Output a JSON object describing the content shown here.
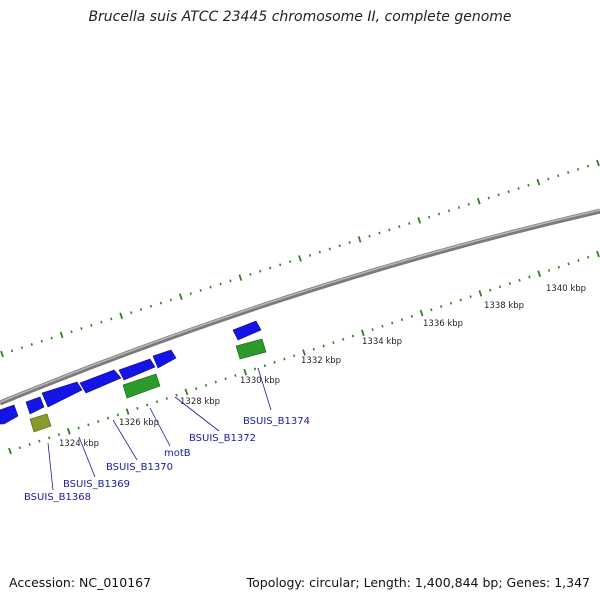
{
  "title": "Brucella suis ATCC 23445 chromosome II, complete genome",
  "footer": {
    "accession": "Accession: NC_010167",
    "summary": "Topology: circular; Length: 1,400,844 bp; Genes: 1,347"
  },
  "colors": {
    "forward_gene": "#1414e6",
    "reverse_gene": "#2a9a2a",
    "pseudo_gene": "#8a9a2a",
    "backbone": "#8a8a8a",
    "ticks": "#2f7f1f",
    "label_line": "#1a1aa6"
  },
  "kbp_ticks": [
    "1324 kbp",
    "1326 kbp",
    "1328 kbp",
    "1330 kbp",
    "1332 kbp",
    "1334 kbp",
    "1336 kbp",
    "1338 kbp",
    "1340 kbp"
  ],
  "gene_labels": [
    "BSUIS_B1368",
    "BSUIS_B1369",
    "BSUIS_B1370",
    "motB",
    "BSUIS_B1372",
    "BSUIS_B1374"
  ]
}
